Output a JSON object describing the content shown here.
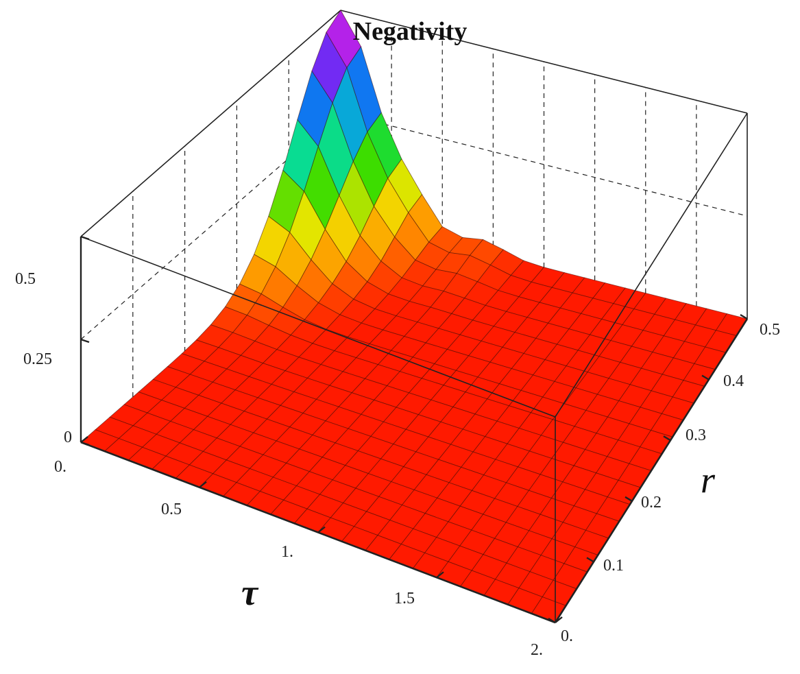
{
  "chart_data": {
    "type": "surface3d",
    "title": "Negativity",
    "x_axis": {
      "label": "τ",
      "range": [
        0,
        2
      ],
      "ticks": [
        "0.",
        "0.5",
        "1.",
        "1.5",
        "2."
      ]
    },
    "y_axis": {
      "label": "r",
      "range": [
        0,
        0.5
      ],
      "ticks": [
        "0.",
        "0.1",
        "0.2",
        "0.3",
        "0.4",
        "0.5"
      ]
    },
    "z_axis": {
      "label": "",
      "range": [
        0,
        0.5
      ],
      "ticks": [
        "0",
        "0.25",
        "0.5"
      ]
    },
    "peaks": [
      {
        "tau": 0.0,
        "r": 0.5,
        "value": 0.5
      },
      {
        "tau": 0.35,
        "r": 0.5,
        "value": 0.08
      },
      {
        "tau": 0.7,
        "r": 0.5,
        "value": 0.03
      }
    ],
    "flat_value": 0,
    "colors": {
      "surface_base": "#ff1a00",
      "mesh": "#3a0a00",
      "box": "#222222"
    }
  }
}
